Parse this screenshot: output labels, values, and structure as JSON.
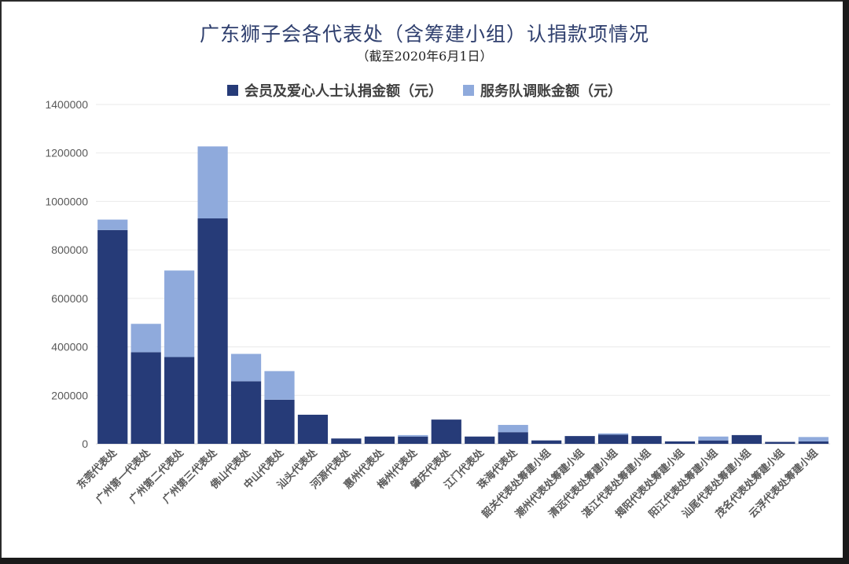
{
  "title": "广东狮子会各代表处（含筹建小组）认捐款项情况",
  "subtitle": "（截至2020年6月1日）",
  "legend": {
    "series1": "会员及爱心人士认捐金额（元）",
    "series2": "服务队调账金额（元）"
  },
  "colors": {
    "series1": "#263b78",
    "series2": "#8faadc",
    "grid": "#eaeaea",
    "title": "#2f3f6e"
  },
  "chart_data": {
    "type": "bar",
    "stacked": true,
    "categories": [
      "东莞代表处",
      "广州第一代表处",
      "广州第二代表处",
      "广州第三代表处",
      "佛山代表处",
      "中山代表处",
      "汕头代表处",
      "河源代表处",
      "惠州代表处",
      "梅州代表处",
      "肇庆代表处",
      "江门代表处",
      "珠海代表处",
      "韶关代表处筹建小组",
      "潮州代表处筹建小组",
      "清远代表处筹建小组",
      "湛江代表处筹建小组",
      "揭阳代表处筹建小组",
      "阳江代表处筹建小组",
      "汕尾代表处筹建小组",
      "茂名代表处筹建小组",
      "云浮代表处筹建小组"
    ],
    "series": [
      {
        "name": "会员及爱心人士认捐金额（元）",
        "values": [
          882000,
          378000,
          358000,
          930000,
          258000,
          182000,
          120000,
          22000,
          30000,
          30000,
          100000,
          30000,
          48000,
          14000,
          32000,
          38000,
          32000,
          10000,
          14000,
          36000,
          8000,
          10000
        ]
      },
      {
        "name": "服务队调账金额（元）",
        "values": [
          43000,
          117000,
          357000,
          297000,
          113000,
          118000,
          0,
          0,
          0,
          6000,
          0,
          0,
          30000,
          0,
          0,
          5000,
          0,
          0,
          16000,
          0,
          0,
          18000
        ]
      }
    ],
    "ylim": [
      0,
      1400000
    ],
    "yticks": [
      0,
      200000,
      400000,
      600000,
      800000,
      1000000,
      1200000,
      1400000
    ],
    "ytick_labels": [
      "0",
      "200000",
      "400000",
      "600000",
      "800000",
      "1000000",
      "1200000",
      "1400000"
    ],
    "grid": true,
    "legend_position": "top"
  }
}
